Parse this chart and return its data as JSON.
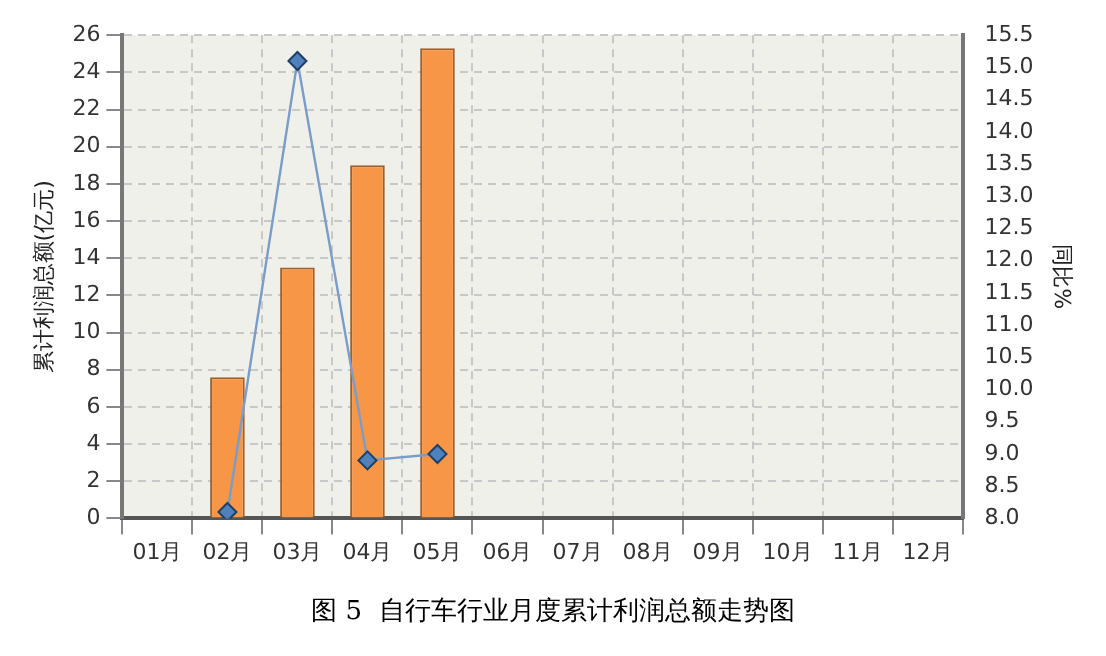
{
  "chart_data": {
    "type": "bar",
    "title": "图 5  自行车行业月度累计利润总额走势图",
    "ylabel": "累计利润总额(亿元)",
    "y2label": "同比%",
    "categories": [
      "01月",
      "02月",
      "03月",
      "04月",
      "05月",
      "06月",
      "07月",
      "08月",
      "09月",
      "10月",
      "11月",
      "12月"
    ],
    "series": [
      {
        "color": "#f79646",
        "values": [
          null,
          7.6,
          13.5,
          19,
          25.3,
          null,
          null,
          null,
          null,
          null,
          null,
          null
        ]
      },
      {
        "type": "line",
        "axis": "y2",
        "color": "#7a9cc8",
        "marker": "diamond",
        "values": [
          null,
          8.1,
          15.1,
          8.9,
          9.0,
          null,
          null,
          null,
          null,
          null,
          null,
          null
        ]
      }
    ],
    "ylim": [
      0,
      26
    ],
    "yticks": [
      0,
      2,
      4,
      6,
      8,
      10,
      12,
      14,
      16,
      18,
      20,
      22,
      24,
      26
    ],
    "y2lim": [
      8,
      15.5
    ],
    "y2ticks": [
      {
        "value": 8,
        "label": "8.0"
      },
      8.5,
      {
        "value": 9,
        "label": "9.0"
      },
      9.5,
      {
        "value": 10,
        "label": "10.0"
      },
      10.5,
      {
        "value": 11,
        "label": "11.0"
      },
      11.5,
      {
        "value": 12,
        "label": "12.0"
      },
      12.5,
      {
        "value": 13,
        "label": "13.0"
      },
      13.5,
      {
        "value": 14,
        "label": "14.0"
      },
      14.5,
      {
        "value": 15,
        "label": "15.0"
      },
      15.5
    ],
    "grid": true,
    "legend": false
  }
}
